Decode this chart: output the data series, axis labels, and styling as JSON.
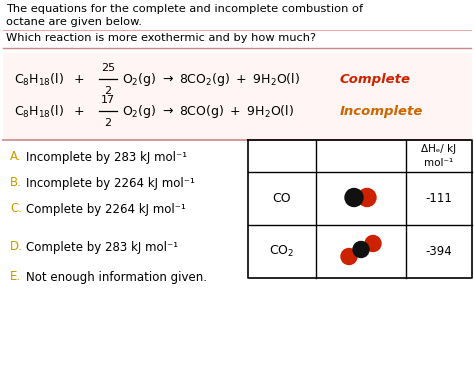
{
  "bg_color": "#ffffff",
  "title_text1": "The equations for the complete and incomplete combustion of",
  "title_text2": "octane are given below.",
  "question": "Which reaction is more exothermic and by how much?",
  "complete_label": "Complete",
  "incomplete_label": "Incomplete",
  "options": [
    {
      "letter": "A.",
      "text": "Incomplete by 283 kJ mol⁻¹"
    },
    {
      "letter": "B.",
      "text": "Incomplete by 2264 kJ mol⁻¹"
    },
    {
      "letter": "C.",
      "text": "Complete by 2264 kJ mol⁻¹"
    },
    {
      "letter": "D.",
      "text": "Complete by 283 kJ mol⁻¹"
    },
    {
      "letter": "E.",
      "text": "Not enough information given."
    }
  ],
  "opt_letter_color": "#cc9900",
  "complete_color": "#cc2200",
  "incomplete_color": "#cc6600",
  "sep_color": "#cc8888",
  "frac_color": "#cc8888",
  "table_header": "ΔHₑ/ kJ\nmol⁻¹",
  "co_value": "-111",
  "co2_value": "-394",
  "eq_pink_bg": "#fff0f0",
  "black_sphere": "#111111",
  "red_sphere": "#cc2200"
}
